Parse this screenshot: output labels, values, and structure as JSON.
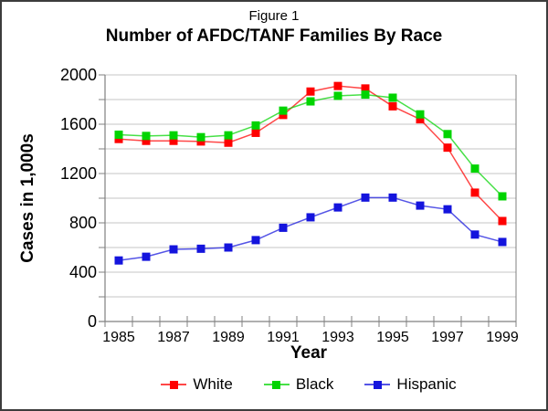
{
  "header": {
    "figure_label": "Figure 1",
    "title": "Number of AFDC/TANF Families By Race"
  },
  "chart_data": {
    "type": "line",
    "title": "Number of AFDC/TANF Families By Race",
    "subtitle": "Figure 1",
    "xlabel": "Year",
    "ylabel": "Cases in 1,000s",
    "x": [
      1985,
      1986,
      1987,
      1988,
      1989,
      1990,
      1991,
      1992,
      1993,
      1994,
      1995,
      1996,
      1997,
      1998,
      1999
    ],
    "x_tick_labels": [
      "1985",
      "1987",
      "1989",
      "1991",
      "1993",
      "1995",
      "1997",
      "1999"
    ],
    "ylim": [
      0,
      2000
    ],
    "y_major_ticks": [
      0,
      400,
      800,
      1200,
      1600,
      2000
    ],
    "y_minor_step": 200,
    "grid": "horizontal-only",
    "legend_position": "bottom",
    "marker": "square",
    "series": [
      {
        "name": "White",
        "color": "#ff0000",
        "values": [
          1480,
          1465,
          1465,
          1460,
          1450,
          1530,
          1675,
          1865,
          1910,
          1890,
          1745,
          1640,
          1410,
          1045,
          815
        ]
      },
      {
        "name": "Black",
        "color": "#00d400",
        "values": [
          1515,
          1505,
          1510,
          1495,
          1510,
          1590,
          1710,
          1785,
          1830,
          1840,
          1815,
          1680,
          1520,
          1240,
          1015
        ]
      },
      {
        "name": "Hispanic",
        "color": "#1414dd",
        "values": [
          495,
          525,
          585,
          590,
          600,
          660,
          760,
          845,
          925,
          1005,
          1005,
          940,
          910,
          705,
          645
        ]
      }
    ],
    "axis_color": "#808080",
    "grid_color": "#c4c4c4",
    "text_color": "#000000"
  }
}
